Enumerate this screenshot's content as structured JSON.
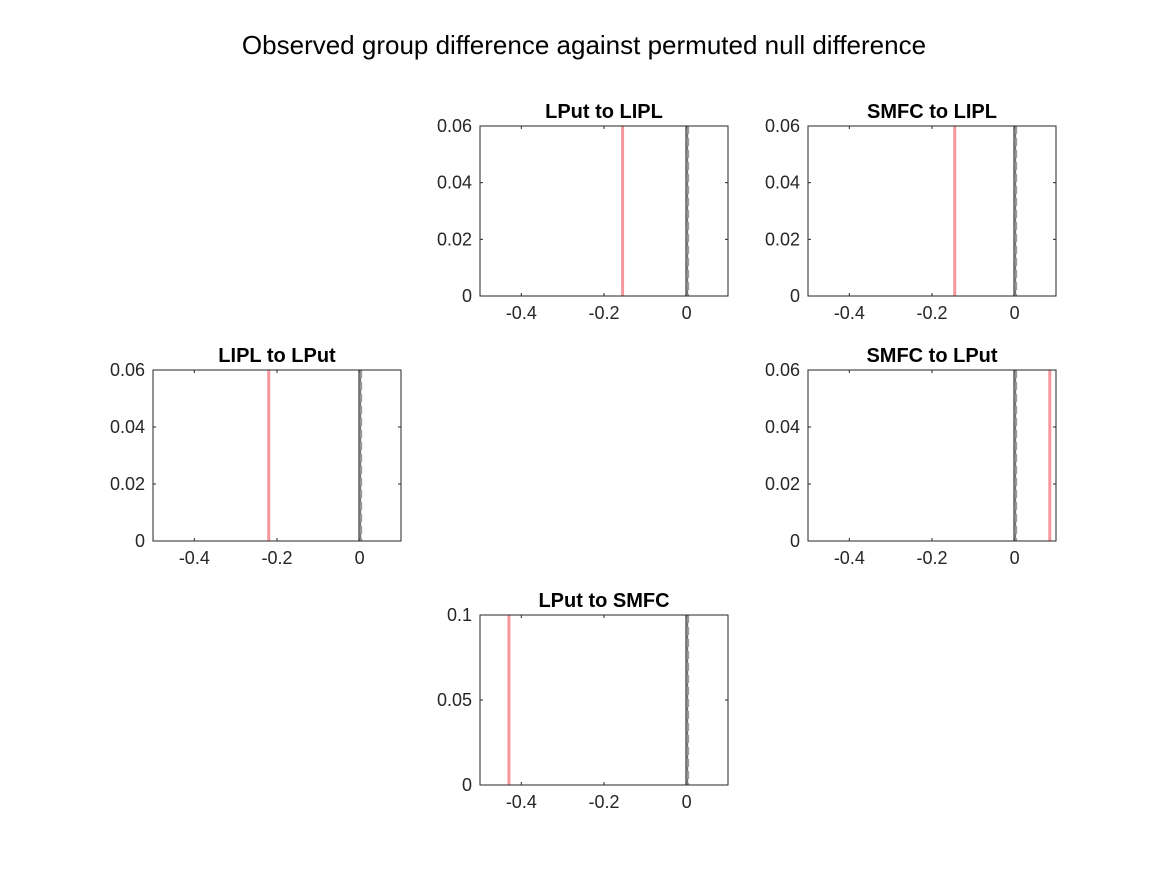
{
  "figure": {
    "title": "Observed group difference against permuted null difference"
  },
  "chart_data": [
    {
      "type": "histogram",
      "title": "LPut to LIPL",
      "xlim": [
        -0.5,
        0.1
      ],
      "ylim": [
        0,
        0.06
      ],
      "xticks": [
        -0.4,
        -0.2,
        0
      ],
      "xtick_labels": [
        "-0.4",
        "-0.2",
        "0"
      ],
      "yticks": [
        0,
        0.02,
        0.04,
        0.06
      ],
      "ytick_labels": [
        "0",
        "0.02",
        "0.04",
        "0.06"
      ],
      "observed_difference": -0.155,
      "null_distribution_center": 0.0,
      "observed_color": "#f4989a",
      "null_color": "#5a5a5a"
    },
    {
      "type": "histogram",
      "title": "SMFC to LIPL",
      "xlim": [
        -0.5,
        0.1
      ],
      "ylim": [
        0,
        0.06
      ],
      "xticks": [
        -0.4,
        -0.2,
        0
      ],
      "xtick_labels": [
        "-0.4",
        "-0.2",
        "0"
      ],
      "yticks": [
        0,
        0.02,
        0.04,
        0.06
      ],
      "ytick_labels": [
        "0",
        "0.02",
        "0.04",
        "0.06"
      ],
      "observed_difference": -0.145,
      "null_distribution_center": 0.0,
      "observed_color": "#f4989a",
      "null_color": "#5a5a5a"
    },
    {
      "type": "histogram",
      "title": "LIPL to LPut",
      "xlim": [
        -0.5,
        0.1
      ],
      "ylim": [
        0,
        0.06
      ],
      "xticks": [
        -0.4,
        -0.2,
        0
      ],
      "xtick_labels": [
        "-0.4",
        "-0.2",
        "0"
      ],
      "yticks": [
        0,
        0.02,
        0.04,
        0.06
      ],
      "ytick_labels": [
        "0",
        "0.02",
        "0.04",
        "0.06"
      ],
      "observed_difference": -0.22,
      "null_distribution_center": 0.0,
      "observed_color": "#f4989a",
      "null_color": "#5a5a5a"
    },
    {
      "type": "histogram",
      "title": "SMFC to LPut",
      "xlim": [
        -0.5,
        0.1
      ],
      "ylim": [
        0,
        0.06
      ],
      "xticks": [
        -0.4,
        -0.2,
        0
      ],
      "xtick_labels": [
        "-0.4",
        "-0.2",
        "0"
      ],
      "yticks": [
        0,
        0.02,
        0.04,
        0.06
      ],
      "ytick_labels": [
        "0",
        "0.02",
        "0.04",
        "0.06"
      ],
      "observed_difference": 0.085,
      "null_distribution_center": 0.0,
      "observed_color": "#f4989a",
      "null_color": "#5a5a5a"
    },
    {
      "type": "histogram",
      "title": "LPut to SMFC",
      "xlim": [
        -0.5,
        0.1
      ],
      "ylim": [
        0,
        0.1
      ],
      "xticks": [
        -0.4,
        -0.2,
        0
      ],
      "xtick_labels": [
        "-0.4",
        "-0.2",
        "0"
      ],
      "yticks": [
        0,
        0.05,
        0.1
      ],
      "ytick_labels": [
        "0",
        "0.05",
        "0.1"
      ],
      "observed_difference": -0.43,
      "null_distribution_center": 0.0,
      "observed_color": "#f4989a",
      "null_color": "#5a5a5a"
    }
  ]
}
